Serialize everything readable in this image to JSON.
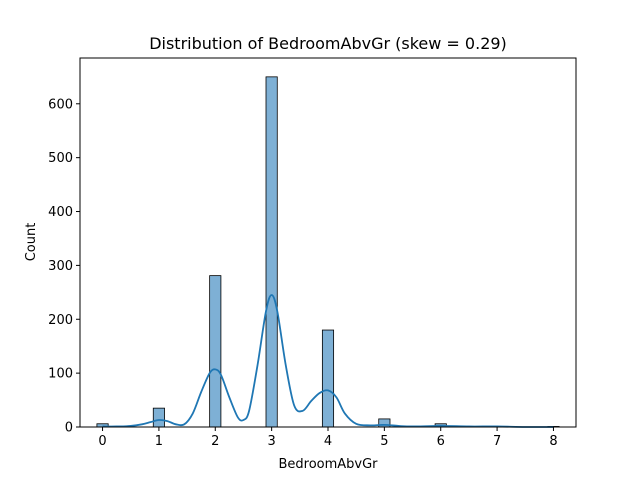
{
  "chart_data": {
    "type": "bar",
    "title": "Distribution of BedroomAbvGr (skew = 0.29)",
    "xlabel": "BedroomAbvGr",
    "ylabel": "Count",
    "xlim": [
      -0.4,
      8.4
    ],
    "ylim": [
      0,
      685
    ],
    "xticks": [
      "0",
      "1",
      "2",
      "3",
      "4",
      "5",
      "6",
      "7",
      "8"
    ],
    "yticks": [
      "0",
      "100",
      "200",
      "300",
      "400",
      "500",
      "600"
    ],
    "grid": false,
    "legend": "none",
    "bar_width": 0.2,
    "bars": [
      {
        "x": 0,
        "value": 6
      },
      {
        "x": 1,
        "value": 35
      },
      {
        "x": 2,
        "value": 281
      },
      {
        "x": 3,
        "value": 650
      },
      {
        "x": 4,
        "value": 180
      },
      {
        "x": 5,
        "value": 15
      },
      {
        "x": 6,
        "value": 6
      },
      {
        "x": 8,
        "value": 1
      }
    ],
    "kde": {
      "x": [
        0.0,
        0.25,
        0.5,
        0.7,
        0.85,
        1.0,
        1.15,
        1.3,
        1.45,
        1.6,
        1.75,
        1.9,
        2.0,
        2.1,
        2.25,
        2.4,
        2.5,
        2.6,
        2.75,
        2.9,
        3.0,
        3.1,
        3.25,
        3.4,
        3.55,
        3.7,
        3.85,
        4.0,
        4.15,
        4.3,
        4.5,
        4.75,
        5.0,
        5.25,
        5.5,
        6.0,
        6.5,
        7.0,
        7.5,
        8.0
      ],
      "y": [
        1,
        1,
        2,
        5,
        9,
        13,
        11,
        5,
        5,
        25,
        65,
        100,
        107,
        97,
        55,
        18,
        13,
        30,
        115,
        215,
        245,
        215,
        115,
        40,
        30,
        48,
        63,
        68,
        55,
        25,
        6,
        3,
        4,
        2,
        1,
        2,
        1,
        1,
        0,
        0
      ]
    },
    "colors": {
      "bar_fill": "#7eb0d5",
      "bar_edge": "#000000",
      "kde_line": "#1f77b4"
    }
  }
}
